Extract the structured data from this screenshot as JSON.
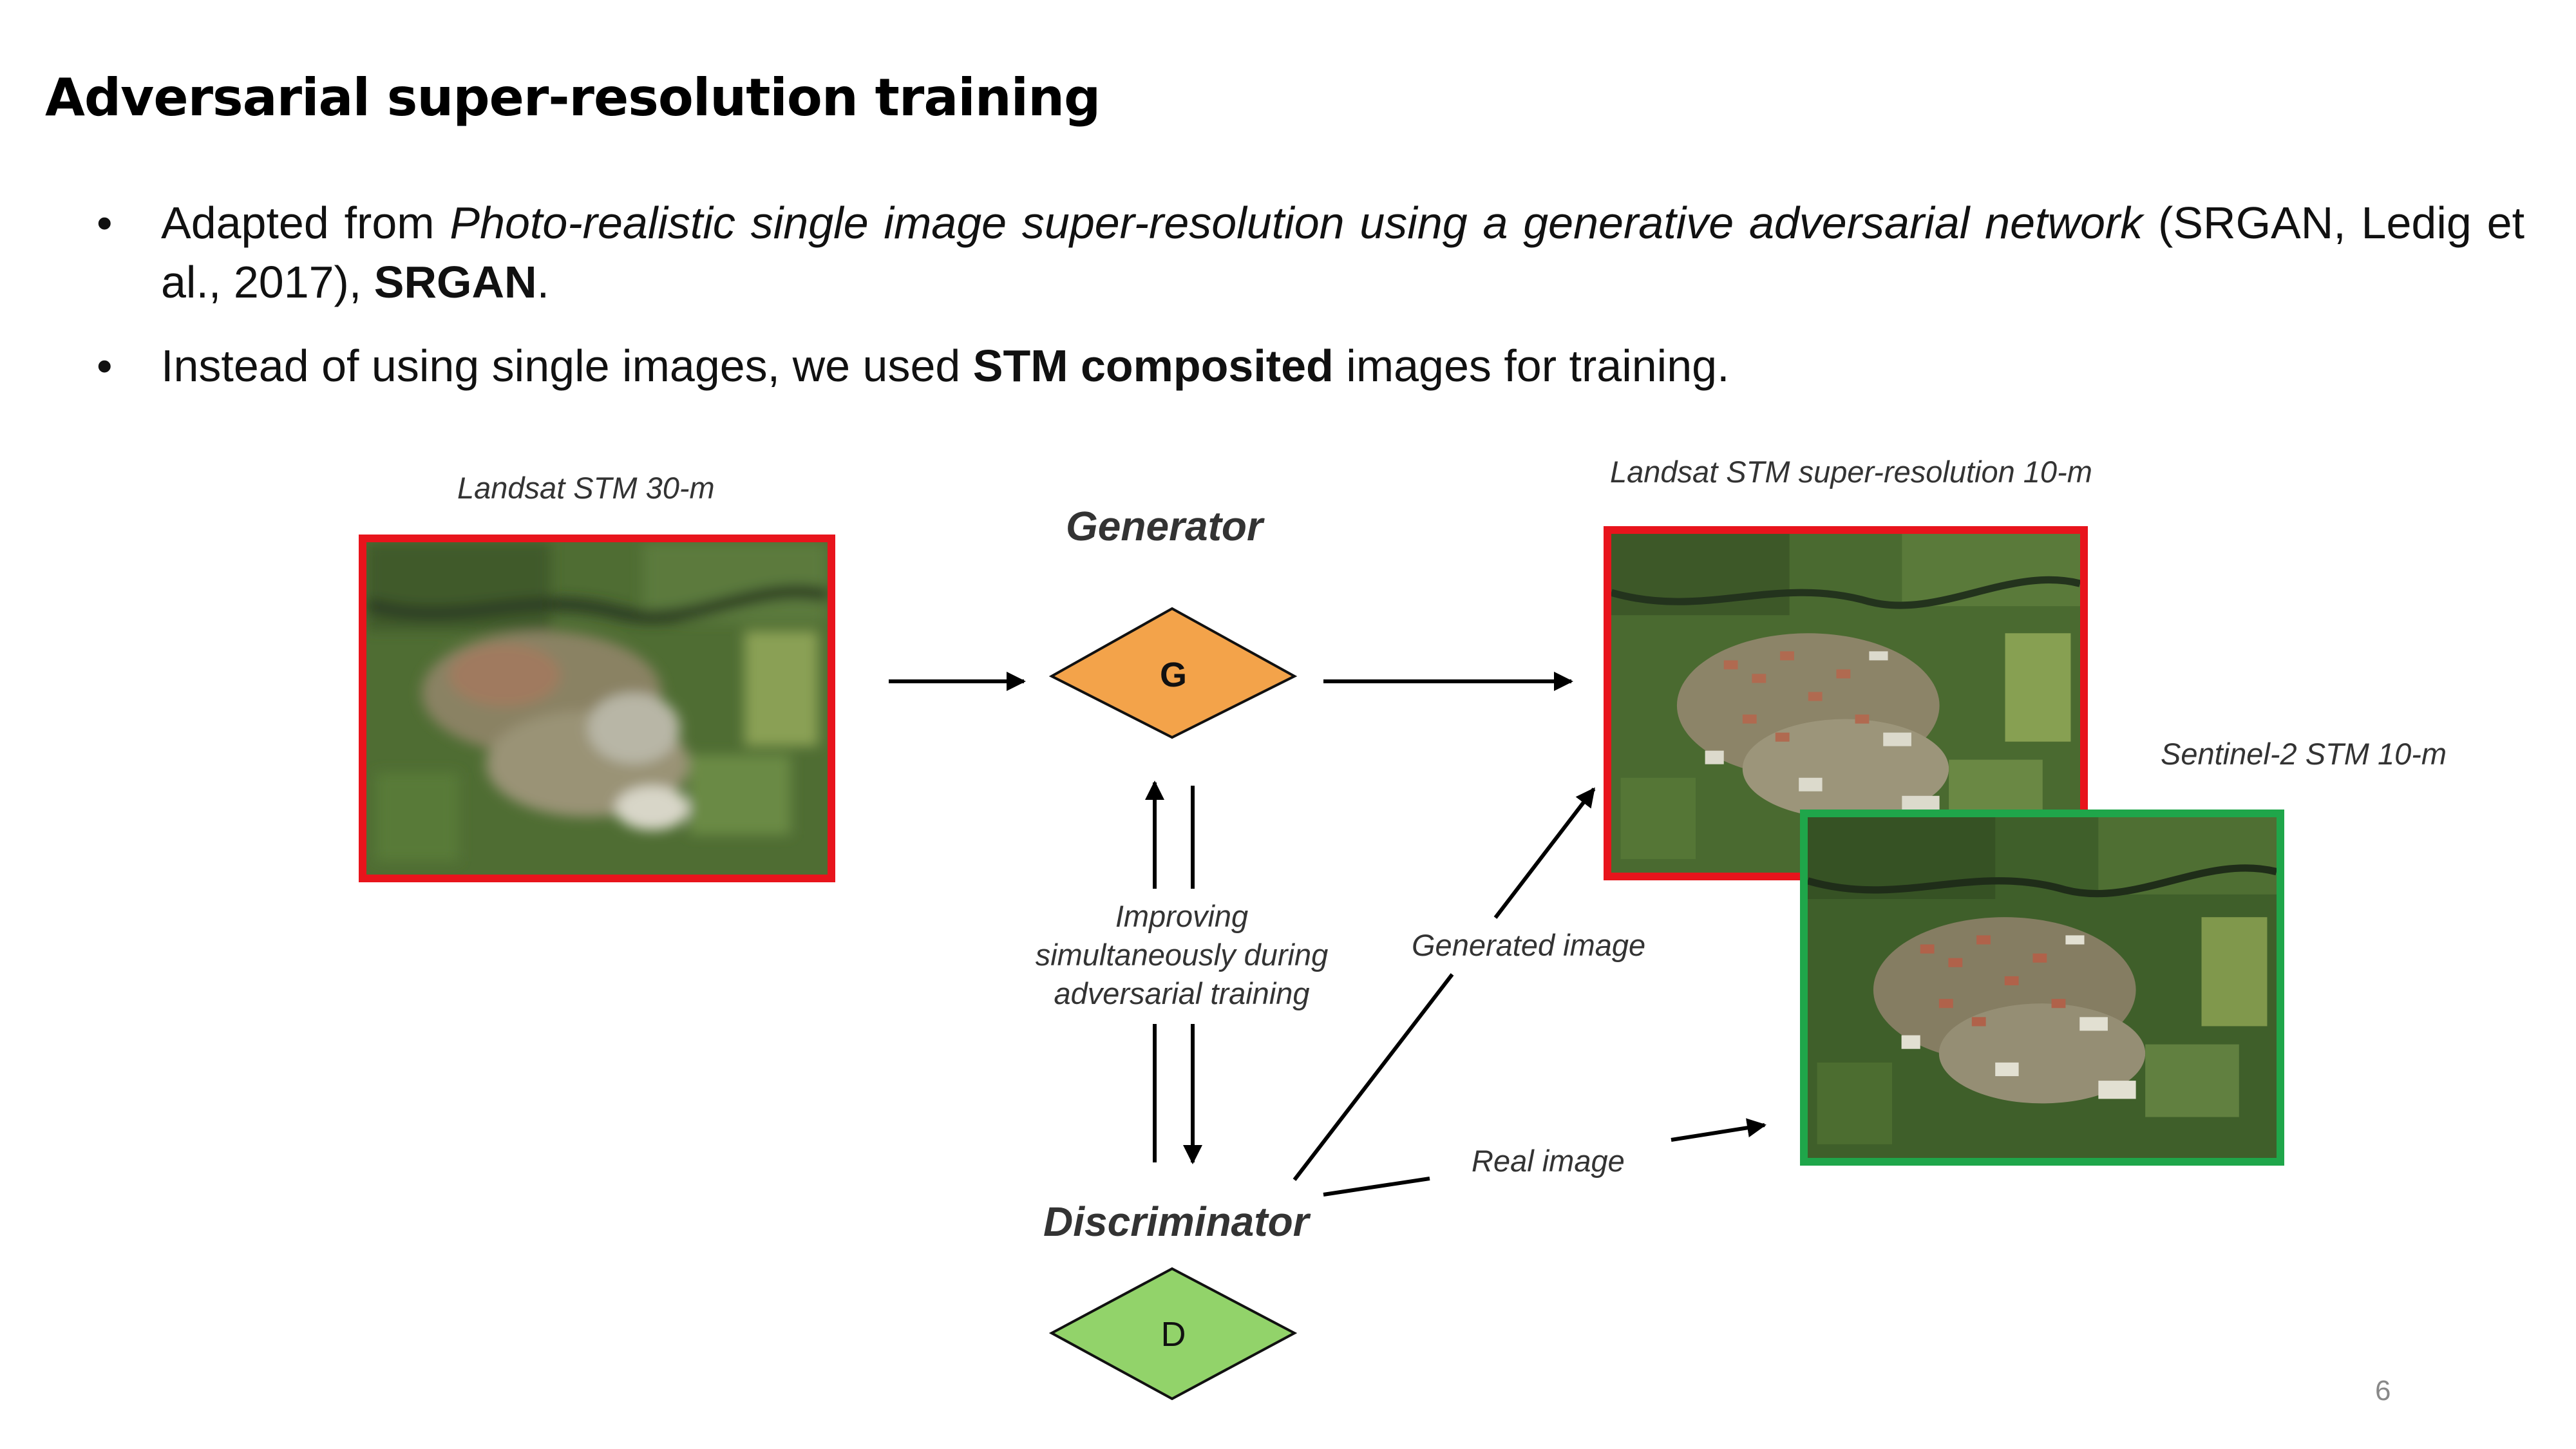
{
  "slide": {
    "title": "Adversarial super-resolution training",
    "bullets": [
      {
        "marker": "•",
        "parts": [
          {
            "text": "Adapted from ",
            "style": "normal"
          },
          {
            "text": "Photo-realistic single image super-resolution using a generative adversarial network",
            "style": "italic"
          },
          {
            "text": " (SRGAN, Ledig et al., 2017), ",
            "style": "normal"
          },
          {
            "text": "SRGAN",
            "style": "bold"
          },
          {
            "text": ".",
            "style": "normal"
          }
        ]
      },
      {
        "marker": "•",
        "parts": [
          {
            "text": "Instead of using single images, we used ",
            "style": "normal"
          },
          {
            "text": "STM composited",
            "style": "bold"
          },
          {
            "text": " images for training.",
            "style": "normal"
          }
        ]
      }
    ],
    "page_number": "6"
  },
  "diagram": {
    "input_caption": "Landsat STM 30-m",
    "generator_caption": "Generator",
    "generator_letter": "G",
    "output_caption": "Landsat STM super-resolution 10-m",
    "reference_caption": "Sentinel-2 STM 10-m",
    "feedback_caption": "Improving simultaneously during adversarial training",
    "generated_label": "Generated image",
    "real_label": "Real image",
    "discriminator_caption": "Discriminator",
    "discriminator_letter": "D",
    "colors": {
      "landsat_frame": "#e8141c",
      "sentinel_frame": "#1fa64a",
      "generator_fill": "#f3a34a",
      "discriminator_fill": "#92d36a"
    }
  }
}
